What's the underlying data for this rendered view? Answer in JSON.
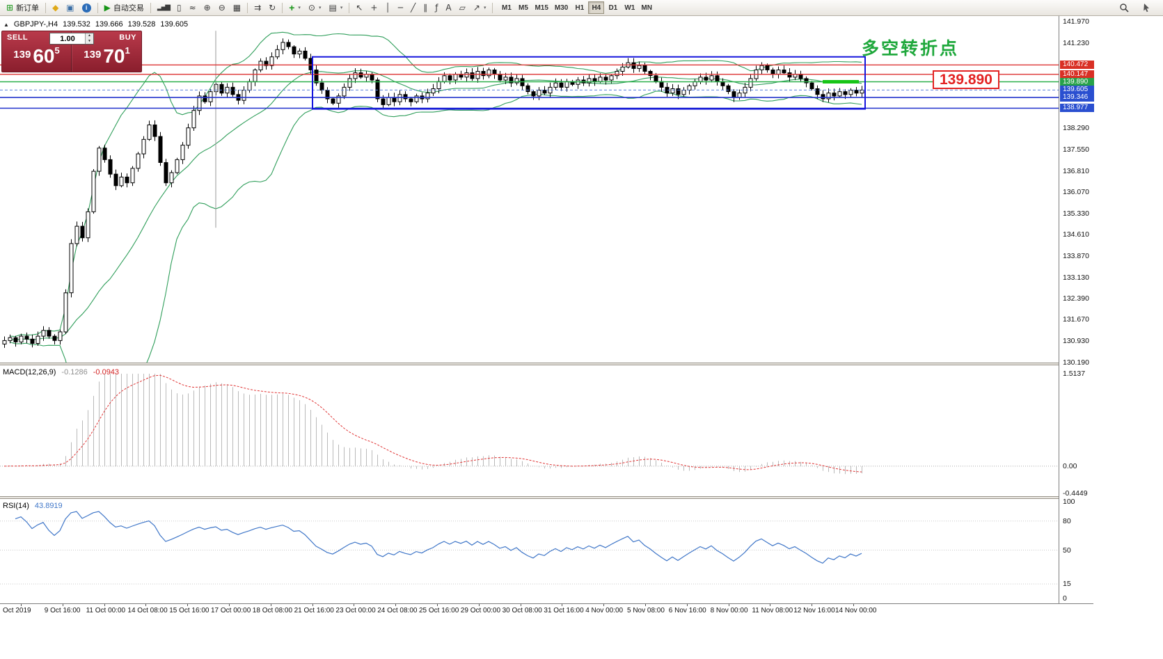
{
  "toolbar": {
    "new_order_label": "新订单",
    "autotrading_label": "自动交易",
    "timeframes": [
      "M1",
      "M5",
      "M15",
      "M30",
      "H1",
      "H4",
      "D1",
      "W1",
      "MN"
    ],
    "active_timeframe": "H4"
  },
  "trade_panel": {
    "sell_label": "SELL",
    "buy_label": "BUY",
    "volume": "1.00",
    "sell_price": {
      "prefix": "139",
      "big": "60",
      "sup": "5"
    },
    "buy_price": {
      "prefix": "139",
      "big": "70",
      "sup": "1"
    }
  },
  "chart": {
    "symbol_info": {
      "symbol": "GBPJPY-,H4",
      "open": "139.532",
      "high": "139.666",
      "low": "139.528",
      "close": "139.605"
    },
    "annotation_text": "多空转折点",
    "annotation_color": "#1fa83c",
    "price_callout": "139.890",
    "callout_color": "#e32222",
    "axis_labels": [
      "141.970",
      "141.230",
      "138.290",
      "137.550",
      "136.810",
      "136.070",
      "135.330",
      "134.610",
      "133.870",
      "133.130",
      "132.390",
      "131.670",
      "130.930",
      "130.190"
    ],
    "line_chips": [
      {
        "value": "140.472",
        "color": "#d93025"
      },
      {
        "value": "140.147",
        "color": "#d93025"
      },
      {
        "value": "139.890",
        "color": "#28a24a"
      },
      {
        "value": "139.605",
        "color": "#2a4fd0"
      },
      {
        "value": "139.346",
        "color": "#2a4fd0"
      },
      {
        "value": "138.977",
        "color": "#2a4fd0"
      }
    ]
  },
  "macd": {
    "name": "MACD(12,26,9)",
    "value_main": "-0.1286",
    "value_signal": "-0.0943",
    "axis_labels": [
      "1.5137",
      "0.00",
      "-0.4449"
    ],
    "range": [
      -0.4449,
      1.5137
    ]
  },
  "rsi": {
    "name": "RSI(14)",
    "value": "43.8919",
    "axis_labels": [
      "100",
      "80",
      "50",
      "15",
      "0"
    ],
    "levels": [
      80,
      50,
      15
    ]
  },
  "time_axis": [
    "Oct 2019",
    "9 Oct 16:00",
    "11 Oct 00:00",
    "14 Oct 08:00",
    "15 Oct 16:00",
    "17 Oct 00:00",
    "18 Oct 08:00",
    "21 Oct 16:00",
    "23 Oct 00:00",
    "24 Oct 08:00",
    "25 Oct 16:00",
    "29 Oct 00:00",
    "30 Oct 08:00",
    "31 Oct 16:00",
    "4 Nov 00:00",
    "5 Nov 08:00",
    "6 Nov 16:00",
    "8 Nov 00:00",
    "11 Nov 08:00",
    "12 Nov 16:00",
    "14 Nov 00:00"
  ],
  "chart_data": {
    "type": "candlestick",
    "symbol": "GBPJPY-",
    "timeframe": "H4",
    "ylim": [
      130.19,
      141.97
    ],
    "closes": [
      130.95,
      131.05,
      130.9,
      131.1,
      131.0,
      130.85,
      131.1,
      131.3,
      131.1,
      130.95,
      131.25,
      132.6,
      134.3,
      134.9,
      134.5,
      135.4,
      136.8,
      137.6,
      137.2,
      136.7,
      136.3,
      136.6,
      136.4,
      136.9,
      137.4,
      137.9,
      138.4,
      138.0,
      137.1,
      136.4,
      136.75,
      137.2,
      137.7,
      138.3,
      138.9,
      139.4,
      139.2,
      139.55,
      139.8,
      139.5,
      139.7,
      139.45,
      139.25,
      139.6,
      139.9,
      140.3,
      140.6,
      140.45,
      140.75,
      141.0,
      141.25,
      141.1,
      140.85,
      140.95,
      140.7,
      140.3,
      139.85,
      139.6,
      139.3,
      139.15,
      139.4,
      139.7,
      140.0,
      140.2,
      140.05,
      140.15,
      139.95,
      139.3,
      139.1,
      139.35,
      139.2,
      139.45,
      139.3,
      139.2,
      139.4,
      139.3,
      139.5,
      139.65,
      139.9,
      140.1,
      139.95,
      140.15,
      140.05,
      140.2,
      140.0,
      140.25,
      140.1,
      140.3,
      140.15,
      139.95,
      140.05,
      139.85,
      140.0,
      139.75,
      139.55,
      139.4,
      139.6,
      139.5,
      139.7,
      139.85,
      139.7,
      139.9,
      139.8,
      139.95,
      139.85,
      140.0,
      139.9,
      140.05,
      139.95,
      140.1,
      140.25,
      140.4,
      140.55,
      140.35,
      140.45,
      140.25,
      140.1,
      139.9,
      139.7,
      139.5,
      139.65,
      139.45,
      139.6,
      139.75,
      139.9,
      140.05,
      139.95,
      140.1,
      139.9,
      139.75,
      139.55,
      139.35,
      139.5,
      139.7,
      140.0,
      140.3,
      140.45,
      140.3,
      140.15,
      140.3,
      140.2,
      140.05,
      140.15,
      140.0,
      139.85,
      139.65,
      139.45,
      139.3,
      139.5,
      139.4,
      139.55,
      139.45,
      139.6,
      139.5,
      139.605
    ],
    "lines": [
      {
        "price": 140.472,
        "color": "#dd3333",
        "width": 1.3
      },
      {
        "price": 140.147,
        "color": "#dd3333",
        "width": 1.3
      },
      {
        "price": 139.89,
        "color": "#2db04b",
        "width": 1.6
      },
      {
        "price": 139.346,
        "color": "#2233cc",
        "width": 1.6
      },
      {
        "price": 138.977,
        "color": "#2233cc",
        "width": 1.6
      },
      {
        "price": 139.605,
        "color": "#5a7fdc",
        "width": 1,
        "dash": "4,3"
      }
    ],
    "box": {
      "from_bar": 56,
      "to_bar": 154,
      "top": 140.75,
      "bottom": 138.95,
      "color": "#1414dd"
    },
    "green_segment": {
      "from_bar": 147,
      "to_bar": 153,
      "price": 139.89,
      "color": "#17c517"
    },
    "vline": {
      "bar": 38,
      "from": 141.65,
      "to": 134.85
    },
    "indicators": {
      "bollinger": [
        20,
        2
      ],
      "macd": [
        12,
        26,
        9
      ],
      "rsi": [
        14
      ]
    }
  }
}
